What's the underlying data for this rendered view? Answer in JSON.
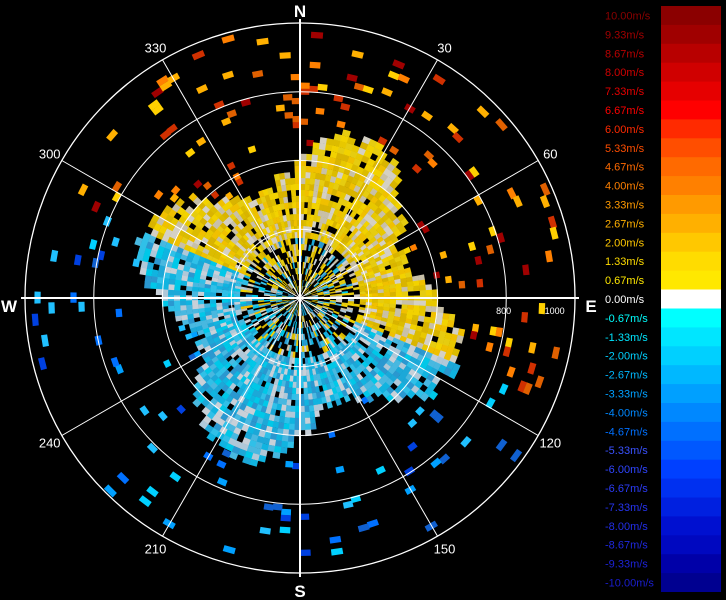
{
  "display": {
    "cardinals": {
      "north": "N",
      "south": "S",
      "east": "E",
      "west": "W"
    },
    "azimuth_labels": [
      {
        "deg": 30,
        "text": "30"
      },
      {
        "deg": 60,
        "text": "60"
      },
      {
        "deg": 120,
        "text": "120"
      },
      {
        "deg": 150,
        "text": "150"
      },
      {
        "deg": 210,
        "text": "210"
      },
      {
        "deg": 240,
        "text": "240"
      },
      {
        "deg": 300,
        "text": "300"
      },
      {
        "deg": 330,
        "text": "330"
      }
    ],
    "range_labels": [
      {
        "value": 800,
        "text": "800"
      },
      {
        "value": 1000,
        "text": "1000"
      }
    ],
    "max_range": 1080
  },
  "legend": {
    "entries": [
      {
        "label": "10.00m/s",
        "color": "#8b0000"
      },
      {
        "label": "9.33m/s",
        "color": "#a00000"
      },
      {
        "label": "8.67m/s",
        "color": "#b80000"
      },
      {
        "label": "8.00m/s",
        "color": "#d00000"
      },
      {
        "label": "7.33m/s",
        "color": "#e60000"
      },
      {
        "label": "6.67m/s",
        "color": "#ff0000"
      },
      {
        "label": "6.00m/s",
        "color": "#ff2a00"
      },
      {
        "label": "5.33m/s",
        "color": "#ff4e00"
      },
      {
        "label": "4.67m/s",
        "color": "#ff6a00"
      },
      {
        "label": "4.00m/s",
        "color": "#ff8000"
      },
      {
        "label": "3.33m/s",
        "color": "#ff9a00"
      },
      {
        "label": "2.67m/s",
        "color": "#ffb000"
      },
      {
        "label": "2.00m/s",
        "color": "#ffc800"
      },
      {
        "label": "1.33m/s",
        "color": "#ffdc00"
      },
      {
        "label": "0.67m/s",
        "color": "#ffe800"
      },
      {
        "label": "0.00m/s",
        "color": "#ffffff"
      },
      {
        "label": "-0.67m/s",
        "color": "#00ffff"
      },
      {
        "label": "-1.33m/s",
        "color": "#00e6ff"
      },
      {
        "label": "-2.00m/s",
        "color": "#00d0ff"
      },
      {
        "label": "-2.67m/s",
        "color": "#00b8ff"
      },
      {
        "label": "-3.33m/s",
        "color": "#00a0ff"
      },
      {
        "label": "-4.00m/s",
        "color": "#0088ff"
      },
      {
        "label": "-4.67m/s",
        "color": "#0070ff"
      },
      {
        "label": "-5.33m/s",
        "color": "#0058ff"
      },
      {
        "label": "-6.00m/s",
        "color": "#0040ff"
      },
      {
        "label": "-6.67m/s",
        "color": "#0030f0"
      },
      {
        "label": "-7.33m/s",
        "color": "#0020e0"
      },
      {
        "label": "-8.00m/s",
        "color": "#0010d0"
      },
      {
        "label": "-8.67m/s",
        "color": "#0008c0"
      },
      {
        "label": "-9.33m/s",
        "color": "#0000a8"
      },
      {
        "label": "-10.00m/s",
        "color": "#000090"
      }
    ]
  }
}
